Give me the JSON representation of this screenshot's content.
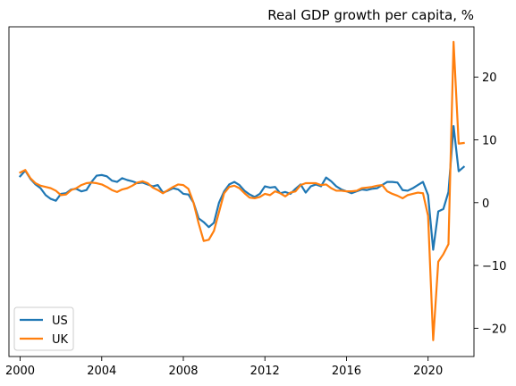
{
  "chart_data": {
    "type": "line",
    "title": "Real GDP growth per capita, %",
    "xlabel": "",
    "ylabel": "",
    "xlim": [
      1999.45,
      2022.25
    ],
    "ylim": [
      -24.5,
      28
    ],
    "x_ticks": [
      2000,
      2004,
      2008,
      2012,
      2016,
      2020
    ],
    "y_ticks": [
      -20,
      -10,
      0,
      10,
      20
    ],
    "y_axis_position": "right",
    "grid": false,
    "legend_position": "lower-left",
    "series": [
      {
        "name": "US",
        "color": "#1f77b4",
        "x": [
          2000.0,
          2000.25,
          2000.5,
          2000.75,
          2001.0,
          2001.25,
          2001.5,
          2001.75,
          2002.0,
          2002.25,
          2002.5,
          2002.75,
          2003.0,
          2003.25,
          2003.5,
          2003.75,
          2004.0,
          2004.25,
          2004.5,
          2004.75,
          2005.0,
          2005.25,
          2005.5,
          2005.75,
          2006.0,
          2006.25,
          2006.5,
          2006.75,
          2007.0,
          2007.25,
          2007.5,
          2007.75,
          2008.0,
          2008.25,
          2008.5,
          2008.75,
          2009.0,
          2009.25,
          2009.5,
          2009.75,
          2010.0,
          2010.25,
          2010.5,
          2010.75,
          2011.0,
          2011.25,
          2011.5,
          2011.75,
          2012.0,
          2012.25,
          2012.5,
          2012.75,
          2013.0,
          2013.25,
          2013.5,
          2013.75,
          2014.0,
          2014.25,
          2014.5,
          2014.75,
          2015.0,
          2015.25,
          2015.5,
          2015.75,
          2016.0,
          2016.25,
          2016.5,
          2016.75,
          2017.0,
          2017.25,
          2017.5,
          2017.75,
          2018.0,
          2018.25,
          2018.5,
          2018.75,
          2019.0,
          2019.25,
          2019.5,
          2019.75,
          2020.0,
          2020.25,
          2020.5,
          2020.75,
          2021.0,
          2021.25,
          2021.5,
          2021.75
        ],
        "values": [
          4.2,
          5.1,
          3.8,
          2.9,
          2.3,
          1.2,
          0.6,
          0.3,
          1.4,
          1.5,
          2.1,
          2.2,
          1.8,
          2.0,
          3.3,
          4.3,
          4.4,
          4.2,
          3.5,
          3.3,
          3.9,
          3.6,
          3.4,
          3.1,
          3.2,
          2.9,
          2.6,
          2.8,
          1.6,
          1.9,
          2.3,
          2.1,
          1.4,
          1.3,
          0.0,
          -2.5,
          -3.1,
          -3.9,
          -3.2,
          0.0,
          1.8,
          2.9,
          3.3,
          2.8,
          1.9,
          1.3,
          0.9,
          1.4,
          2.6,
          2.4,
          2.5,
          1.5,
          1.7,
          1.4,
          2.2,
          2.9,
          1.6,
          2.6,
          2.9,
          2.6,
          4.0,
          3.4,
          2.6,
          2.1,
          1.8,
          1.5,
          1.8,
          2.1,
          2.0,
          2.2,
          2.3,
          2.8,
          3.3,
          3.3,
          3.2,
          2.0,
          1.9,
          2.3,
          2.8,
          3.3,
          1.2,
          -7.5,
          -1.4,
          -1.0,
          1.7,
          12.2,
          5.0,
          5.7
        ]
      },
      {
        "name": "UK",
        "color": "#ff7f0e",
        "x": [
          2000.0,
          2000.25,
          2000.5,
          2000.75,
          2001.0,
          2001.25,
          2001.5,
          2001.75,
          2002.0,
          2002.25,
          2002.5,
          2002.75,
          2003.0,
          2003.25,
          2003.5,
          2003.75,
          2004.0,
          2004.25,
          2004.5,
          2004.75,
          2005.0,
          2005.25,
          2005.5,
          2005.75,
          2006.0,
          2006.25,
          2006.5,
          2006.75,
          2007.0,
          2007.25,
          2007.5,
          2007.75,
          2008.0,
          2008.25,
          2008.5,
          2008.75,
          2009.0,
          2009.25,
          2009.5,
          2009.75,
          2010.0,
          2010.25,
          2010.5,
          2010.75,
          2011.0,
          2011.25,
          2011.5,
          2011.75,
          2012.0,
          2012.25,
          2012.5,
          2012.75,
          2013.0,
          2013.25,
          2013.5,
          2013.75,
          2014.0,
          2014.25,
          2014.5,
          2014.75,
          2015.0,
          2015.25,
          2015.5,
          2015.75,
          2016.0,
          2016.25,
          2016.5,
          2016.75,
          2017.0,
          2017.25,
          2017.5,
          2017.75,
          2018.0,
          2018.25,
          2018.5,
          2018.75,
          2019.0,
          2019.25,
          2019.5,
          2019.75,
          2020.0,
          2020.25,
          2020.5,
          2020.75,
          2021.0,
          2021.25,
          2021.5,
          2021.75
        ],
        "values": [
          4.8,
          5.2,
          3.9,
          3.1,
          2.7,
          2.5,
          2.3,
          1.9,
          1.2,
          1.3,
          2.0,
          2.3,
          2.8,
          3.1,
          3.2,
          3.1,
          2.9,
          2.5,
          2.0,
          1.7,
          2.1,
          2.3,
          2.7,
          3.2,
          3.4,
          3.1,
          2.4,
          2.0,
          1.5,
          2.0,
          2.5,
          2.9,
          2.8,
          2.2,
          0.0,
          -3.3,
          -6.1,
          -5.9,
          -4.5,
          -1.5,
          1.5,
          2.5,
          2.7,
          2.3,
          1.5,
          0.8,
          0.7,
          0.9,
          1.4,
          1.2,
          1.8,
          1.5,
          1.0,
          1.6,
          1.8,
          2.8,
          3.1,
          3.1,
          3.1,
          2.8,
          2.9,
          2.3,
          1.9,
          1.9,
          1.8,
          1.8,
          1.9,
          2.3,
          2.4,
          2.5,
          2.7,
          2.8,
          1.8,
          1.4,
          1.1,
          0.7,
          1.2,
          1.4,
          1.6,
          1.5,
          -2.1,
          -21.9,
          -9.4,
          -8.2,
          -6.6,
          25.6,
          9.4,
          9.5
        ]
      }
    ]
  }
}
